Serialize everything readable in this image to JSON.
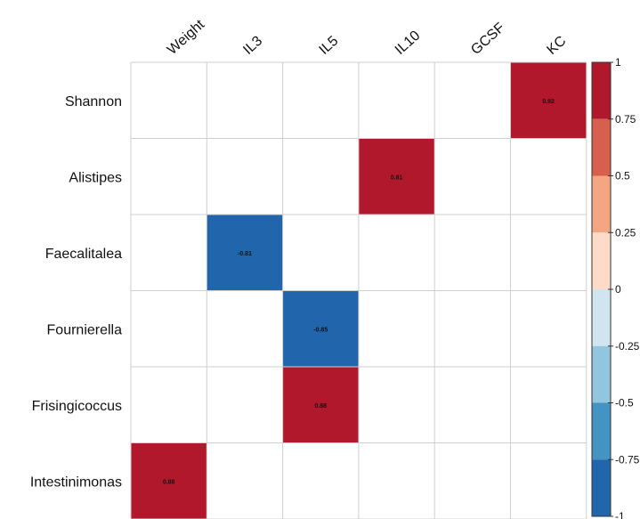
{
  "chart_data": {
    "type": "heatmap",
    "title": "",
    "xlabel": "",
    "ylabel": "",
    "columns": [
      "Weight",
      "IL3",
      "IL5",
      "IL10",
      "GCSF",
      "KC"
    ],
    "rows": [
      "Shannon",
      "Alistipes",
      "Faecalitalea",
      "Fournierella",
      "Frisingicoccus",
      "Intestinimonas"
    ],
    "cells": [
      {
        "row": "Shannon",
        "col": "KC",
        "value": 0.92,
        "label": "0.92"
      },
      {
        "row": "Alistipes",
        "col": "IL10",
        "value": 0.81,
        "label": "0.81"
      },
      {
        "row": "Faecalitalea",
        "col": "IL3",
        "value": -0.81,
        "label": "-0.81"
      },
      {
        "row": "Fournierella",
        "col": "IL5",
        "value": -0.85,
        "label": "-0.85"
      },
      {
        "row": "Frisingicoccus",
        "col": "IL5",
        "value": 0.88,
        "label": "0.88"
      },
      {
        "row": "Intestinimonas",
        "col": "Weight",
        "value": 0.88,
        "label": "0.88"
      }
    ],
    "color_scale": {
      "range": [
        -1,
        1
      ],
      "ticks": [
        {
          "value": 1,
          "label": "1"
        },
        {
          "value": 0.75,
          "label": "0.75"
        },
        {
          "value": 0.5,
          "label": "0.5"
        },
        {
          "value": 0.25,
          "label": "0.25"
        },
        {
          "value": 0,
          "label": "0"
        },
        {
          "value": -0.25,
          "label": "-0.25"
        },
        {
          "value": -0.5,
          "label": "-0.5"
        },
        {
          "value": -0.75,
          "label": "-0.75"
        },
        {
          "value": -1,
          "label": "-1"
        }
      ],
      "bins": [
        {
          "from": 0.75,
          "to": 1,
          "color": "#b2182b"
        },
        {
          "from": 0.5,
          "to": 0.75,
          "color": "#d6604d"
        },
        {
          "from": 0.25,
          "to": 0.5,
          "color": "#f4a582"
        },
        {
          "from": 0,
          "to": 0.25,
          "color": "#fddbc7"
        },
        {
          "from": -0.25,
          "to": 0,
          "color": "#d1e5f0"
        },
        {
          "from": -0.5,
          "to": -0.25,
          "color": "#92c5de"
        },
        {
          "from": -0.75,
          "to": -0.5,
          "color": "#4393c3"
        },
        {
          "from": -1,
          "to": -0.75,
          "color": "#2166ac"
        }
      ]
    },
    "legend_placement": "right",
    "grid": true
  }
}
